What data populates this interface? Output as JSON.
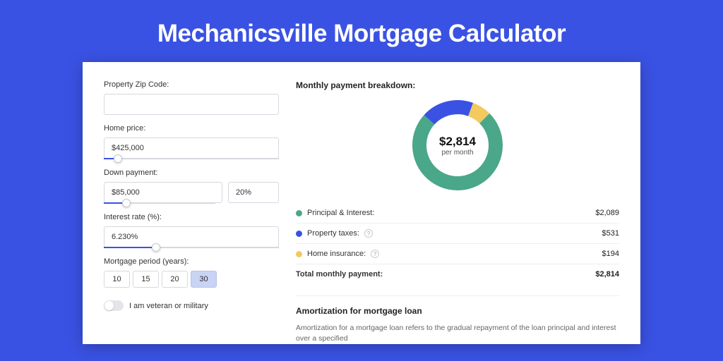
{
  "page": {
    "title": "Mechanicsville Mortgage Calculator"
  },
  "colors": {
    "page_bg": "#3a52e3",
    "card_bg": "#ffffff",
    "primary": "#3a52e3",
    "border": "#d5d8df"
  },
  "form": {
    "zip_label": "Property Zip Code:",
    "zip_value": "",
    "home_price_label": "Home price:",
    "home_price_value": "$425,000",
    "home_price_slider_pct": 8,
    "down_label": "Down payment:",
    "down_value": "$85,000",
    "down_pct_value": "20%",
    "down_slider_pct": 20,
    "rate_label": "Interest rate (%):",
    "rate_value": "6.230%",
    "rate_slider_pct": 30,
    "period_label": "Mortgage period (years):",
    "period_options": [
      "10",
      "15",
      "20",
      "30"
    ],
    "period_selected": "30",
    "veteran_label": "I am veteran or military",
    "veteran_on": false
  },
  "breakdown": {
    "title": "Monthly payment breakdown:",
    "total_amount": "$2,814",
    "per_month": "per month",
    "items": [
      {
        "label": "Principal & Interest:",
        "value": "$2,089",
        "color": "#4aa789",
        "has_info": false,
        "fraction": 0.742
      },
      {
        "label": "Property taxes:",
        "value": "$531",
        "color": "#3a52e3",
        "has_info": true,
        "fraction": 0.189
      },
      {
        "label": "Home insurance:",
        "value": "$194",
        "color": "#f4c95d",
        "has_info": true,
        "fraction": 0.069
      }
    ],
    "total_label": "Total monthly payment:",
    "donut": {
      "stroke_width": 20,
      "radius": 54,
      "start_angle_deg": -45
    }
  },
  "amortization": {
    "title": "Amortization for mortgage loan",
    "text": "Amortization for a mortgage loan refers to the gradual repayment of the loan principal and interest over a specified"
  }
}
